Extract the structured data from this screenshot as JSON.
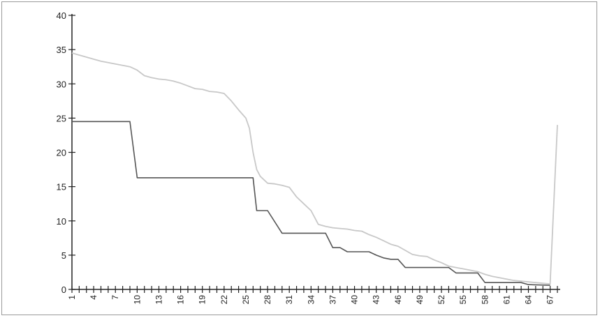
{
  "chart_data": {
    "type": "line",
    "title": "",
    "xlabel": "",
    "ylabel": "",
    "xlim": [
      1,
      68
    ],
    "ylim": [
      0,
      40
    ],
    "grid": false,
    "legend": "none",
    "x_tick_labels": [
      "1",
      "4",
      "7",
      "10",
      "13",
      "16",
      "19",
      "22",
      "25",
      "28",
      "31",
      "34",
      "37",
      "40",
      "43",
      "46",
      "49",
      "52",
      "55",
      "58",
      "61",
      "64",
      "67"
    ],
    "y_tick_labels": [
      "0",
      "5",
      "10",
      "15",
      "20",
      "25",
      "30",
      "35",
      "40"
    ],
    "series": [
      {
        "color": "#c8c8c8",
        "points": [
          [
            1,
            34.5
          ],
          [
            2,
            34.2
          ],
          [
            3,
            33.9
          ],
          [
            4,
            33.6
          ],
          [
            5,
            33.3
          ],
          [
            6,
            33.1
          ],
          [
            7,
            32.9
          ],
          [
            8,
            32.7
          ],
          [
            9,
            32.5
          ],
          [
            10,
            32.0
          ],
          [
            11,
            31.2
          ],
          [
            12,
            30.9
          ],
          [
            13,
            30.7
          ],
          [
            14,
            30.6
          ],
          [
            15,
            30.4
          ],
          [
            16,
            30.1
          ],
          [
            17,
            29.7
          ],
          [
            18,
            29.3
          ],
          [
            19,
            29.2
          ],
          [
            20,
            28.9
          ],
          [
            21,
            28.8
          ],
          [
            22,
            28.6
          ],
          [
            23,
            27.5
          ],
          [
            24,
            26.2
          ],
          [
            25,
            25.0
          ],
          [
            25.5,
            23.5
          ],
          [
            26,
            20.0
          ],
          [
            26.5,
            17.5
          ],
          [
            27,
            16.5
          ],
          [
            28,
            15.5
          ],
          [
            29,
            15.4
          ],
          [
            30,
            15.2
          ],
          [
            31,
            14.9
          ],
          [
            32,
            13.5
          ],
          [
            33,
            12.5
          ],
          [
            34,
            11.5
          ],
          [
            35,
            9.5
          ],
          [
            36,
            9.2
          ],
          [
            37,
            9.0
          ],
          [
            38,
            8.9
          ],
          [
            39,
            8.8
          ],
          [
            40,
            8.6
          ],
          [
            41,
            8.5
          ],
          [
            42,
            8.0
          ],
          [
            43,
            7.6
          ],
          [
            44,
            7.1
          ],
          [
            45,
            6.6
          ],
          [
            46,
            6.3
          ],
          [
            47,
            5.7
          ],
          [
            48,
            5.1
          ],
          [
            49,
            4.9
          ],
          [
            50,
            4.8
          ],
          [
            51,
            4.3
          ],
          [
            52,
            3.9
          ],
          [
            53,
            3.4
          ],
          [
            54,
            3.2
          ],
          [
            55,
            3.0
          ],
          [
            56,
            2.8
          ],
          [
            57,
            2.6
          ],
          [
            58,
            2.2
          ],
          [
            59,
            1.9
          ],
          [
            60,
            1.7
          ],
          [
            61,
            1.5
          ],
          [
            62,
            1.3
          ],
          [
            63,
            1.2
          ],
          [
            64,
            1.1
          ],
          [
            65,
            1.0
          ],
          [
            66,
            0.9
          ],
          [
            67,
            0.8
          ],
          [
            68,
            24.0
          ]
        ]
      },
      {
        "color": "#555555",
        "points": [
          [
            1,
            24.5
          ],
          [
            9,
            24.5
          ],
          [
            10,
            16.3
          ],
          [
            26,
            16.3
          ],
          [
            26.5,
            11.5
          ],
          [
            28,
            11.5
          ],
          [
            30,
            8.2
          ],
          [
            36,
            8.2
          ],
          [
            37,
            6.1
          ],
          [
            38,
            6.1
          ],
          [
            39,
            5.5
          ],
          [
            42,
            5.5
          ],
          [
            43,
            5.0
          ],
          [
            44,
            4.6
          ],
          [
            45,
            4.4
          ],
          [
            46,
            4.4
          ],
          [
            47,
            3.2
          ],
          [
            53,
            3.2
          ],
          [
            54,
            2.4
          ],
          [
            57,
            2.4
          ],
          [
            58,
            1.0
          ],
          [
            63,
            1.0
          ],
          [
            64,
            0.7
          ],
          [
            67,
            0.6
          ]
        ]
      }
    ]
  }
}
